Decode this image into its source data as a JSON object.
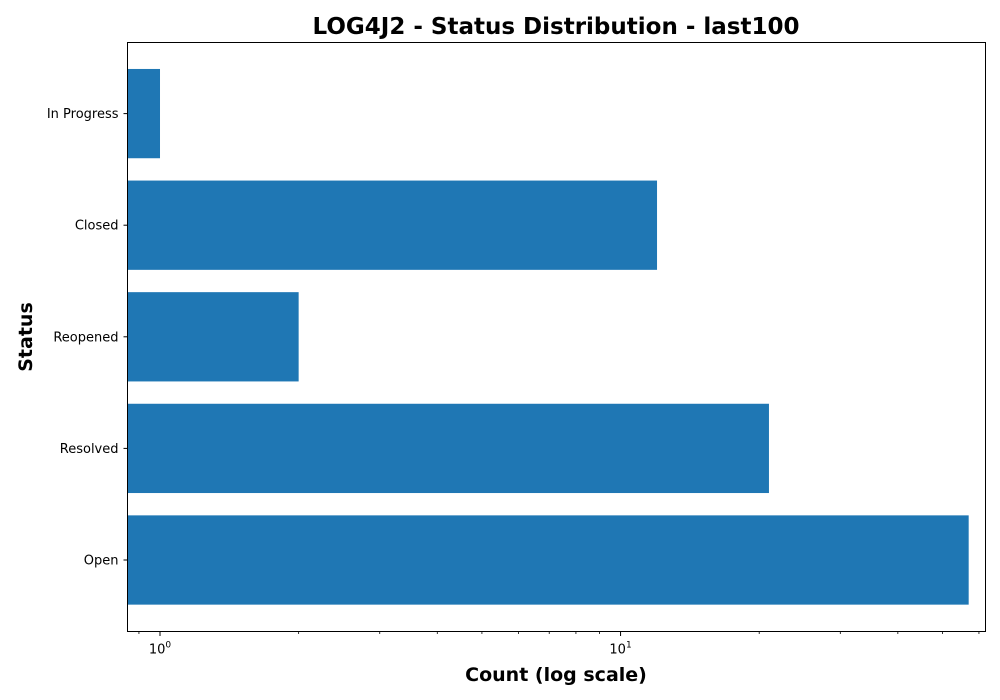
{
  "chart_data": {
    "type": "bar",
    "orientation": "horizontal",
    "title": "LOG4J2 - Status Distribution - last100",
    "xlabel": "Count (log scale)",
    "ylabel": "Status",
    "x_scale": "log",
    "xlim": [
      0.85,
      62
    ],
    "x_tick_base": "10",
    "x_major_ticks": [
      {
        "value": 1,
        "exponent": "0"
      },
      {
        "value": 10,
        "exponent": "1"
      }
    ],
    "categories": [
      "Open",
      "Resolved",
      "Reopened",
      "Closed",
      "In Progress"
    ],
    "values": [
      57,
      21,
      2,
      12,
      1
    ],
    "bar_color": "#1f77b4",
    "grid": false,
    "legend": "none"
  }
}
